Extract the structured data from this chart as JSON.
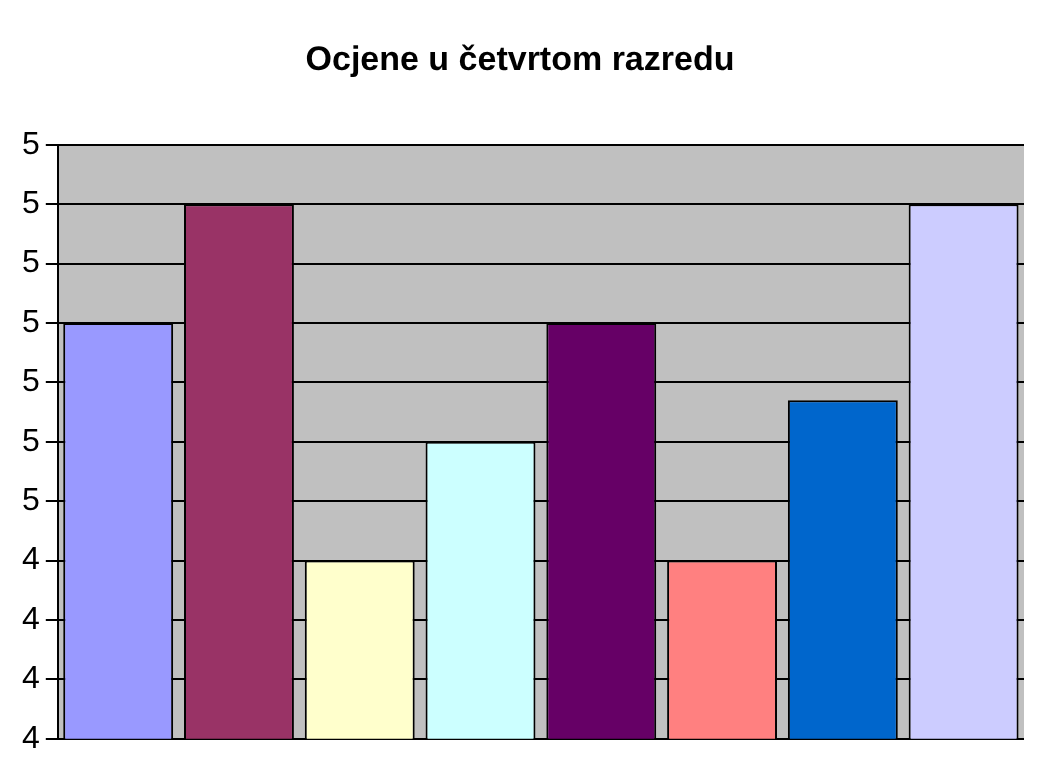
{
  "chart_data": {
    "type": "bar",
    "title": "Ocjene u četvrtom razredu",
    "categories": [
      null,
      null,
      null,
      null,
      null,
      null,
      null,
      null
    ],
    "values": [
      4.8,
      5.0,
      4.4,
      4.6,
      4.8,
      4.4,
      4.67,
      5.0
    ],
    "colors": [
      "#9999ff",
      "#993366",
      "#ffffcc",
      "#ccffff",
      "#660066",
      "#ff8080",
      "#0066cc",
      "#ccccff"
    ],
    "ylim": [
      4.1,
      5.1
    ],
    "yticks": [
      {
        "value": 4.1,
        "label": "4"
      },
      {
        "value": 4.2,
        "label": "4"
      },
      {
        "value": 4.3,
        "label": "4"
      },
      {
        "value": 4.4,
        "label": "4"
      },
      {
        "value": 4.5,
        "label": "5"
      },
      {
        "value": 4.6,
        "label": "5"
      },
      {
        "value": 4.7,
        "label": "5"
      },
      {
        "value": 4.8,
        "label": "5"
      },
      {
        "value": 4.9,
        "label": "5"
      },
      {
        "value": 5.0,
        "label": "5"
      },
      {
        "value": 5.1,
        "label": "5"
      }
    ],
    "grid": "y"
  }
}
